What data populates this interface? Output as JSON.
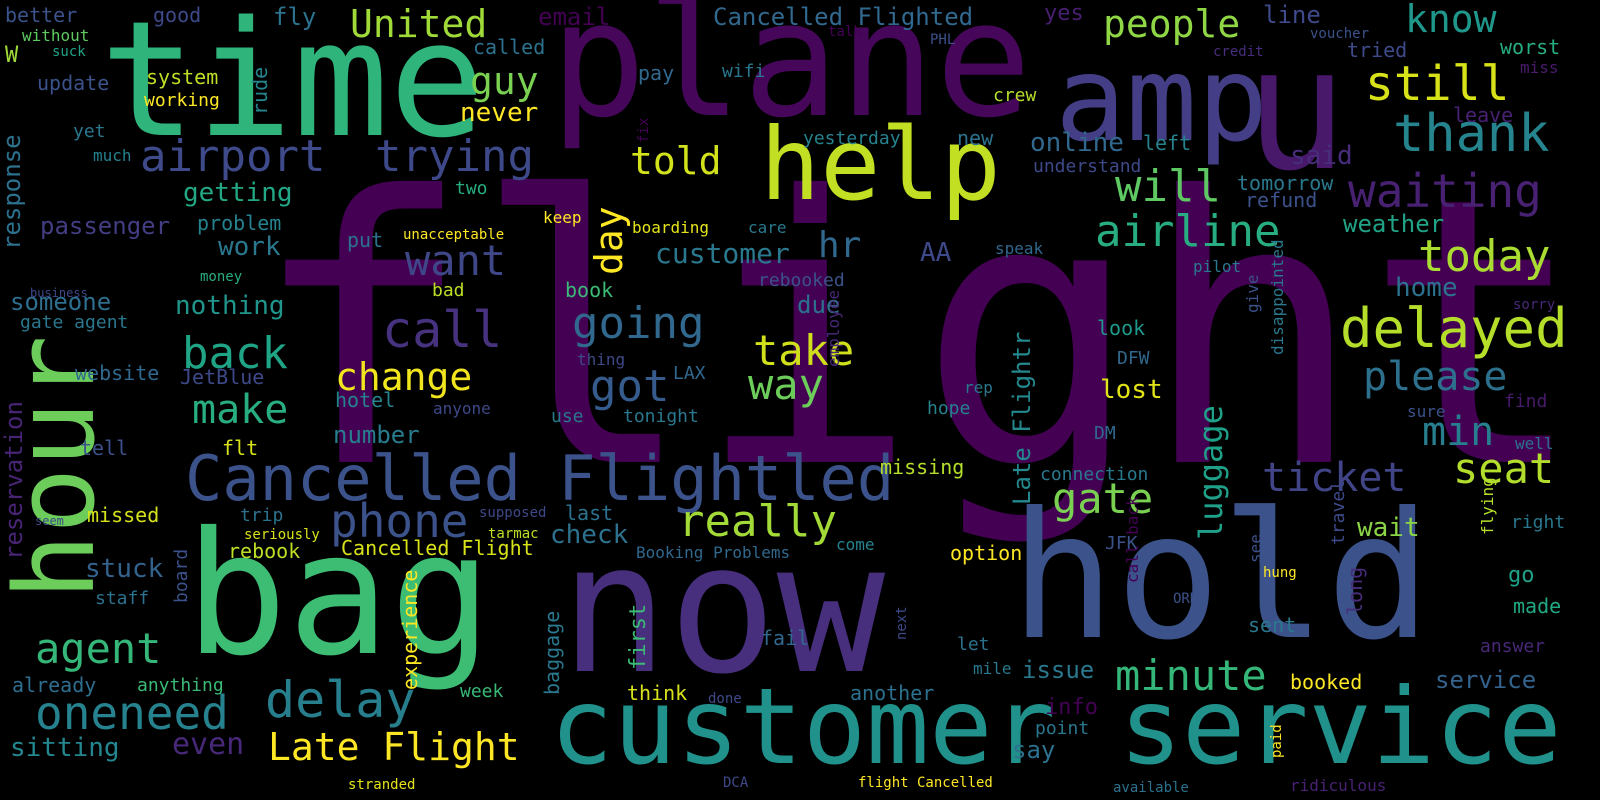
{
  "words": [
    {
      "t": "flight",
      "c": "#440154"
    },
    {
      "t": "plane",
      "c": "#46075a"
    },
    {
      "t": "time",
      "c": "#2fb47c"
    },
    {
      "t": "hour",
      "c": "#6ccd5a"
    },
    {
      "t": "bag",
      "c": "#3dbc74"
    },
    {
      "t": "now",
      "c": "#472f7d"
    },
    {
      "t": "hold",
      "c": "#3b528b"
    },
    {
      "t": "u",
      "c": "#48186a"
    },
    {
      "t": "amp",
      "c": "#433e85"
    },
    {
      "t": "help",
      "c": "#c2df23"
    },
    {
      "t": "customer service",
      "c": "#21918c"
    },
    {
      "t": "Cancelled Flightled",
      "c": "#3b528b"
    },
    {
      "t": "airport",
      "c": "#3e4a89"
    },
    {
      "t": "trying",
      "c": "#3e4989"
    },
    {
      "t": "delayed",
      "c": "#b5de2b"
    },
    {
      "t": "United",
      "c": "#a0da39"
    },
    {
      "t": "people",
      "c": "#8fd744"
    },
    {
      "t": "still",
      "c": "#d8e219"
    },
    {
      "t": "thank",
      "c": "#25848e"
    },
    {
      "t": "waiting",
      "c": "#482173"
    },
    {
      "t": "know",
      "c": "#1f988b"
    },
    {
      "t": "will",
      "c": "#5ec962"
    },
    {
      "t": "airline",
      "c": "#27ad81"
    },
    {
      "t": "today",
      "c": "#aadc32"
    },
    {
      "t": "oneneed",
      "c": "#26828e"
    },
    {
      "t": "delay",
      "c": "#277f8e"
    },
    {
      "t": "Late Flight",
      "c": "#fde725"
    },
    {
      "t": "minute",
      "c": "#35b779"
    },
    {
      "t": "call",
      "c": "#46327e"
    },
    {
      "t": "phone",
      "c": "#3b528b"
    },
    {
      "t": "really",
      "c": "#a2da37"
    },
    {
      "t": "gate",
      "c": "#7ad151"
    },
    {
      "t": "going",
      "c": "#31688e"
    },
    {
      "t": "got",
      "c": "#365c8d"
    },
    {
      "t": "want",
      "c": "#3f4788"
    },
    {
      "t": "back",
      "c": "#20a486"
    },
    {
      "t": "change",
      "c": "#f1e51d"
    },
    {
      "t": "make",
      "c": "#28ae80"
    },
    {
      "t": "agent",
      "c": "#35b779"
    },
    {
      "t": "please",
      "c": "#2d708e"
    },
    {
      "t": "seat",
      "c": "#b2dd2d"
    },
    {
      "t": "ticket",
      "c": "#414487"
    },
    {
      "t": "luggage",
      "c": "#1fa088"
    },
    {
      "t": "min",
      "c": "#277e8e"
    },
    {
      "t": "take",
      "c": "#d0e11c"
    },
    {
      "t": "way",
      "c": "#6ccd5a"
    },
    {
      "t": "told",
      "c": "#d2e21b"
    },
    {
      "t": "day",
      "c": "#fde725"
    },
    {
      "t": "guy",
      "c": "#7ad151"
    },
    {
      "t": "customer",
      "c": "#2a788e"
    },
    {
      "t": "hr",
      "c": "#31688e"
    },
    {
      "t": "Late Flightr",
      "c": "#23898e"
    },
    {
      "t": "even",
      "c": "#482878"
    },
    {
      "t": "sitting",
      "c": "#24868e"
    },
    {
      "t": "response",
      "c": "#2c728e"
    },
    {
      "t": "passenger",
      "c": "#433d84"
    },
    {
      "t": "getting",
      "c": "#22a884"
    },
    {
      "t": "someone",
      "c": "#2e6e8e"
    },
    {
      "t": "nothing",
      "c": "#1f958b"
    },
    {
      "t": "work",
      "c": "#2a788e"
    },
    {
      "t": "reservation",
      "c": "#482475"
    },
    {
      "t": "stuck",
      "c": "#33628d"
    },
    {
      "t": "rebook",
      "c": "#bddf26"
    },
    {
      "t": "missed",
      "c": "#d5e21a"
    },
    {
      "t": "experience",
      "c": "#fde725"
    },
    {
      "t": "Cancelled Flight",
      "c": "#d8e219"
    },
    {
      "t": "check",
      "c": "#2c718e"
    },
    {
      "t": "lost",
      "c": "#e2e418"
    },
    {
      "t": "number",
      "c": "#287c8e"
    },
    {
      "t": "hotel",
      "c": "#25838e"
    },
    {
      "t": "missing",
      "c": "#b5de2b"
    },
    {
      "t": "wait",
      "c": "#8bd646"
    },
    {
      "t": "issue",
      "c": "#2a788e"
    },
    {
      "t": "say",
      "c": "#2c728e"
    },
    {
      "t": "first",
      "c": "#3bbb75"
    },
    {
      "t": "think",
      "c": "#d8e219"
    },
    {
      "t": "booked",
      "c": "#fde725"
    },
    {
      "t": "service",
      "c": "#33638d"
    },
    {
      "t": "answer",
      "c": "#482878"
    },
    {
      "t": "go",
      "c": "#1fa188"
    },
    {
      "t": "made",
      "c": "#22a884"
    },
    {
      "t": "baggage",
      "c": "#2a788e"
    },
    {
      "t": "already",
      "c": "#2e6e8e"
    },
    {
      "t": "anything",
      "c": "#3aba76"
    },
    {
      "t": "week",
      "c": "#38b977"
    },
    {
      "t": "another",
      "c": "#2c728e"
    },
    {
      "t": "info",
      "c": "#440154"
    },
    {
      "t": "point",
      "c": "#2a788e"
    },
    {
      "t": "stranded",
      "c": "#e5e419"
    },
    {
      "t": "DCA",
      "c": "#3e4989"
    },
    {
      "t": "flight Cancelled",
      "c": "#fde725"
    },
    {
      "t": "available",
      "c": "#2c728e"
    },
    {
      "t": "ridiculous",
      "c": "#482173"
    },
    {
      "t": "paid",
      "c": "#fde725"
    },
    {
      "t": "better",
      "c": "#3b528b"
    },
    {
      "t": "without",
      "c": "#5ec962"
    },
    {
      "t": "W",
      "c": "#a0da39"
    },
    {
      "t": "suck",
      "c": "#20a386"
    },
    {
      "t": "good",
      "c": "#3e4989"
    },
    {
      "t": "fly",
      "c": "#2c728e"
    },
    {
      "t": "email",
      "c": "#440154"
    },
    {
      "t": "Cancelled Flighted",
      "c": "#31688e"
    },
    {
      "t": "yes",
      "c": "#481f70"
    },
    {
      "t": "line",
      "c": "#3e4a89"
    },
    {
      "t": "called",
      "c": "#2c728e"
    },
    {
      "t": "talk",
      "c": "#440154"
    },
    {
      "t": "PHL",
      "c": "#3b528b"
    },
    {
      "t": "voucher",
      "c": "#3b528b"
    },
    {
      "t": "credit",
      "c": "#472d7b"
    },
    {
      "t": "tried",
      "c": "#3e4a89"
    },
    {
      "t": "worst",
      "c": "#27ad81"
    },
    {
      "t": "miss",
      "c": "#481b6d"
    },
    {
      "t": "update",
      "c": "#3b528b"
    },
    {
      "t": "system",
      "c": "#bddf26"
    },
    {
      "t": "working",
      "c": "#fde725"
    },
    {
      "t": "pay",
      "c": "#31688e"
    },
    {
      "t": "wifi",
      "c": "#2a788e"
    },
    {
      "t": "rude",
      "c": "#24868e"
    },
    {
      "t": "crew",
      "c": "#b5de2b"
    },
    {
      "t": "never",
      "c": "#fde725"
    },
    {
      "t": "leave",
      "c": "#482173"
    },
    {
      "t": "yet",
      "c": "#2a788e"
    },
    {
      "t": "much",
      "c": "#26828e"
    },
    {
      "t": "fix",
      "c": "#440154"
    },
    {
      "t": "online",
      "c": "#31688e"
    },
    {
      "t": "yesterday",
      "c": "#26828e"
    },
    {
      "t": "new",
      "c": "#2c728e"
    },
    {
      "t": "left",
      "c": "#26828e"
    },
    {
      "t": "said",
      "c": "#472d7b"
    },
    {
      "t": "understand",
      "c": "#3e4989"
    },
    {
      "t": "tomorrow",
      "c": "#2a788e"
    },
    {
      "t": "refund",
      "c": "#3b528b"
    },
    {
      "t": "two",
      "c": "#27ad81"
    },
    {
      "t": "problem",
      "c": "#26828e"
    },
    {
      "t": "keep",
      "c": "#fde725"
    },
    {
      "t": "boarding",
      "c": "#e5e419"
    },
    {
      "t": "care",
      "c": "#2a788e"
    },
    {
      "t": "weather",
      "c": "#20a386"
    },
    {
      "t": "unacceptable",
      "c": "#fde725"
    },
    {
      "t": "put",
      "c": "#2c728e"
    },
    {
      "t": "speak",
      "c": "#31688e"
    },
    {
      "t": "AA",
      "c": "#3e4989"
    },
    {
      "t": "money",
      "c": "#27ad81"
    },
    {
      "t": "rebooked",
      "c": "#3b528b"
    },
    {
      "t": "pilot",
      "c": "#2a788e"
    },
    {
      "t": "business",
      "c": "#3e4989"
    },
    {
      "t": "bad",
      "c": "#bddf26"
    },
    {
      "t": "book",
      "c": "#3bbb75"
    },
    {
      "t": "home",
      "c": "#2c728e"
    },
    {
      "t": "sorry",
      "c": "#482878"
    },
    {
      "t": "gate agent",
      "c": "#2a788e"
    },
    {
      "t": "due",
      "c": "#2c728e"
    },
    {
      "t": "look",
      "c": "#1f988b"
    },
    {
      "t": "give",
      "c": "#3b528b"
    },
    {
      "t": "website",
      "c": "#31688e"
    },
    {
      "t": "JetBlue",
      "c": "#3e4989"
    },
    {
      "t": "thing",
      "c": "#3e4989"
    },
    {
      "t": "LAX",
      "c": "#31688e"
    },
    {
      "t": "employee",
      "c": "#482878"
    },
    {
      "t": "DFW",
      "c": "#31688e"
    },
    {
      "t": "disappointed",
      "c": "#2a788e"
    },
    {
      "t": "rep",
      "c": "#2a788e"
    },
    {
      "t": "find",
      "c": "#481a6c"
    },
    {
      "t": "anyone",
      "c": "#3e4989"
    },
    {
      "t": "use",
      "c": "#2a788e"
    },
    {
      "t": "tonight",
      "c": "#2a788e"
    },
    {
      "t": "hope",
      "c": "#26828e"
    },
    {
      "t": "sure",
      "c": "#3b528b"
    },
    {
      "t": "tell",
      "c": "#3b528b"
    },
    {
      "t": "flt",
      "c": "#d8e219"
    },
    {
      "t": "DM",
      "c": "#31688e"
    },
    {
      "t": "well",
      "c": "#2c728e"
    },
    {
      "t": "connection",
      "c": "#2a788e"
    },
    {
      "t": "trip",
      "c": "#2c728e"
    },
    {
      "t": "supposed",
      "c": "#3e4989"
    },
    {
      "t": "last",
      "c": "#2c728e"
    },
    {
      "t": "seem",
      "c": "#3e4989"
    },
    {
      "t": "seriously",
      "c": "#d8e219"
    },
    {
      "t": "tarmac",
      "c": "#bddf26"
    },
    {
      "t": "right",
      "c": "#2a788e"
    },
    {
      "t": "come",
      "c": "#26828e"
    },
    {
      "t": "option",
      "c": "#fde725"
    },
    {
      "t": "JFK",
      "c": "#3b528b"
    },
    {
      "t": "Booking Problems",
      "c": "#31688e"
    },
    {
      "t": "travel",
      "c": "#3e4989"
    },
    {
      "t": "hung",
      "c": "#fde725"
    },
    {
      "t": "flying",
      "c": "#b5de2b"
    },
    {
      "t": "staff",
      "c": "#2c728e"
    },
    {
      "t": "board",
      "c": "#3b528b"
    },
    {
      "t": "fail",
      "c": "#31688e"
    },
    {
      "t": "call back",
      "c": "#440154"
    },
    {
      "t": "ORD",
      "c": "#3b528b"
    },
    {
      "t": "sent",
      "c": "#2a788e"
    },
    {
      "t": "long",
      "c": "#472d7b"
    },
    {
      "t": "see",
      "c": "#3b528b"
    },
    {
      "t": "let",
      "c": "#2c728e"
    },
    {
      "t": "mile",
      "c": "#2a788e"
    },
    {
      "t": "next",
      "c": "#3e4989"
    },
    {
      "t": "done",
      "c": "#3e4989"
    }
  ]
}
